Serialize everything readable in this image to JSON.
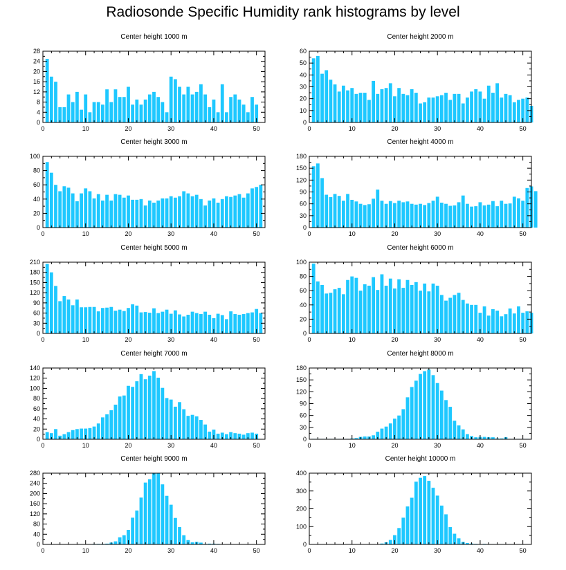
{
  "title": "Radiosonde Specific Humidity rank histograms by level",
  "colors": {
    "bar": "#1ec8ff",
    "axis": "#000000",
    "background": "#ffffff"
  },
  "chart_data": [
    {
      "type": "bar",
      "title": "Center height 1000 m",
      "xlim": [
        0,
        52
      ],
      "ylim": [
        0,
        28
      ],
      "xticks": [
        0,
        10,
        20,
        30,
        40,
        50
      ],
      "yticks": [
        0,
        4,
        8,
        12,
        16,
        20,
        24,
        28
      ],
      "values": [
        25,
        18,
        16,
        6,
        6,
        11,
        8,
        12,
        5,
        11,
        4,
        8,
        8,
        7,
        13,
        8,
        13,
        10,
        10,
        14,
        7,
        9,
        7,
        9,
        11,
        12,
        10,
        8,
        4,
        18,
        17,
        14,
        11,
        14,
        11,
        12,
        15,
        11,
        6,
        9,
        4,
        15,
        4,
        10,
        11,
        9,
        7,
        4,
        10,
        7
      ]
    },
    {
      "type": "bar",
      "title": "Center height 2000 m",
      "xlim": [
        0,
        52
      ],
      "ylim": [
        0,
        60
      ],
      "xticks": [
        0,
        10,
        20,
        30,
        40,
        50
      ],
      "yticks": [
        0,
        10,
        20,
        30,
        40,
        50,
        60
      ],
      "values": [
        54,
        56,
        41,
        44,
        36,
        32,
        26,
        31,
        27,
        29,
        24,
        25,
        25,
        19,
        35,
        24,
        28,
        29,
        33,
        22,
        29,
        24,
        23,
        28,
        25,
        16,
        17,
        21,
        21,
        22,
        23,
        25,
        19,
        24,
        24,
        16,
        21,
        26,
        28,
        26,
        20,
        31,
        25,
        33,
        21,
        24,
        23,
        17,
        19,
        20,
        21,
        14
      ]
    },
    {
      "type": "bar",
      "title": "Center height 3000 m",
      "xlim": [
        0,
        52
      ],
      "ylim": [
        0,
        100
      ],
      "xticks": [
        0,
        10,
        20,
        30,
        40,
        50
      ],
      "yticks": [
        0,
        20,
        40,
        60,
        80,
        100
      ],
      "values": [
        92,
        77,
        60,
        51,
        58,
        56,
        48,
        37,
        48,
        55,
        51,
        41,
        47,
        38,
        46,
        38,
        47,
        46,
        42,
        45,
        39,
        39,
        40,
        31,
        38,
        35,
        38,
        41,
        41,
        44,
        42,
        44,
        51,
        48,
        44,
        46,
        40,
        31,
        38,
        41,
        35,
        40,
        44,
        43,
        45,
        47,
        42,
        48,
        55,
        57,
        60
      ]
    },
    {
      "type": "bar",
      "title": "Center height 4000 m",
      "xlim": [
        0,
        52
      ],
      "ylim": [
        0,
        180
      ],
      "xticks": [
        0,
        10,
        20,
        30,
        40,
        50
      ],
      "yticks": [
        0,
        30,
        60,
        90,
        120,
        150,
        180
      ],
      "values": [
        155,
        162,
        125,
        83,
        77,
        85,
        80,
        68,
        85,
        70,
        66,
        60,
        57,
        59,
        73,
        96,
        68,
        60,
        67,
        62,
        68,
        64,
        66,
        60,
        58,
        60,
        57,
        62,
        68,
        78,
        63,
        60,
        55,
        56,
        64,
        81,
        60,
        53,
        54,
        64,
        56,
        58,
        67,
        54,
        68,
        60,
        61,
        78,
        74,
        68,
        100,
        104,
        92
      ]
    },
    {
      "type": "bar",
      "title": "Center height 5000 m",
      "xlim": [
        0,
        52
      ],
      "ylim": [
        0,
        210
      ],
      "xticks": [
        0,
        10,
        20,
        30,
        40,
        50
      ],
      "yticks": [
        0,
        30,
        60,
        90,
        120,
        150,
        180,
        210
      ],
      "values": [
        205,
        180,
        140,
        95,
        110,
        100,
        83,
        100,
        77,
        77,
        78,
        78,
        65,
        75,
        76,
        78,
        67,
        70,
        66,
        75,
        86,
        82,
        62,
        63,
        61,
        74,
        60,
        64,
        70,
        58,
        68,
        56,
        50,
        55,
        64,
        60,
        57,
        64,
        55,
        45,
        58,
        54,
        42,
        65,
        57,
        55,
        57,
        60,
        62,
        72,
        60
      ]
    },
    {
      "type": "bar",
      "title": "Center height 6000 m",
      "xlim": [
        0,
        52
      ],
      "ylim": [
        0,
        100
      ],
      "xticks": [
        0,
        10,
        20,
        30,
        40,
        50
      ],
      "yticks": [
        0,
        20,
        40,
        60,
        80,
        100
      ],
      "values": [
        98,
        73,
        68,
        56,
        57,
        62,
        64,
        55,
        75,
        80,
        78,
        60,
        69,
        67,
        79,
        61,
        83,
        67,
        77,
        63,
        76,
        64,
        75,
        68,
        72,
        60,
        70,
        59,
        70,
        67,
        54,
        46,
        50,
        54,
        57,
        47,
        42,
        40,
        40,
        29,
        38,
        25,
        34,
        32,
        24,
        27,
        35,
        28,
        38,
        29,
        31,
        29
      ]
    },
    {
      "type": "bar",
      "title": "Center height 7000 m",
      "xlim": [
        0,
        52
      ],
      "ylim": [
        0,
        140
      ],
      "xticks": [
        0,
        10,
        20,
        30,
        40,
        50
      ],
      "yticks": [
        0,
        20,
        40,
        60,
        80,
        100,
        120,
        140
      ],
      "values": [
        14,
        12,
        20,
        7,
        10,
        14,
        18,
        20,
        21,
        21,
        22,
        25,
        31,
        43,
        49,
        57,
        68,
        84,
        86,
        105,
        103,
        114,
        128,
        118,
        125,
        134,
        121,
        101,
        81,
        78,
        64,
        73,
        59,
        46,
        48,
        45,
        38,
        29,
        15,
        19,
        11,
        13,
        10,
        14,
        12,
        11,
        9,
        12,
        13,
        11
      ]
    },
    {
      "type": "bar",
      "title": "Center height 8000 m",
      "xlim": [
        0,
        52
      ],
      "ylim": [
        0,
        180
      ],
      "xticks": [
        0,
        10,
        20,
        30,
        40,
        50
      ],
      "yticks": [
        0,
        30,
        60,
        90,
        120,
        150,
        180
      ],
      "values": [
        1,
        1,
        1,
        1,
        1,
        1,
        1,
        1,
        1,
        2,
        3,
        6,
        7,
        7,
        10,
        19,
        27,
        32,
        40,
        52,
        60,
        76,
        106,
        132,
        148,
        165,
        172,
        176,
        162,
        142,
        123,
        99,
        82,
        47,
        35,
        25,
        13,
        8,
        5,
        6,
        6,
        5,
        5,
        2,
        2,
        5,
        1,
        1,
        1,
        1,
        1
      ]
    },
    {
      "type": "bar",
      "title": "Center height 9000 m",
      "xlim": [
        0,
        52
      ],
      "ylim": [
        0,
        280
      ],
      "xticks": [
        0,
        10,
        20,
        30,
        40,
        50
      ],
      "yticks": [
        0,
        40,
        80,
        120,
        160,
        200,
        240,
        280
      ],
      "values": [
        1,
        1,
        1,
        1,
        1,
        1,
        1,
        1,
        1,
        1,
        1,
        2,
        2,
        2,
        3,
        7,
        12,
        28,
        36,
        57,
        105,
        133,
        184,
        243,
        256,
        280,
        280,
        236,
        191,
        156,
        104,
        68,
        36,
        17,
        8,
        10,
        7,
        2,
        3,
        3,
        2,
        1,
        1,
        1,
        1,
        1,
        1,
        1,
        1,
        1,
        1
      ]
    },
    {
      "type": "bar",
      "title": "Center height 10000 m",
      "xlim": [
        0,
        52
      ],
      "ylim": [
        0,
        400
      ],
      "xticks": [
        0,
        10,
        20,
        30,
        40,
        50
      ],
      "yticks": [
        0,
        100,
        200,
        300,
        400
      ],
      "values": [
        1,
        1,
        1,
        1,
        1,
        1,
        1,
        1,
        1,
        1,
        1,
        1,
        1,
        1,
        1,
        1,
        5,
        12,
        25,
        52,
        92,
        150,
        213,
        262,
        352,
        374,
        384,
        357,
        318,
        274,
        218,
        169,
        97,
        60,
        34,
        14,
        8,
        5,
        3,
        2,
        3,
        2,
        2,
        2,
        2,
        2,
        2,
        1,
        1,
        1,
        1
      ]
    }
  ]
}
